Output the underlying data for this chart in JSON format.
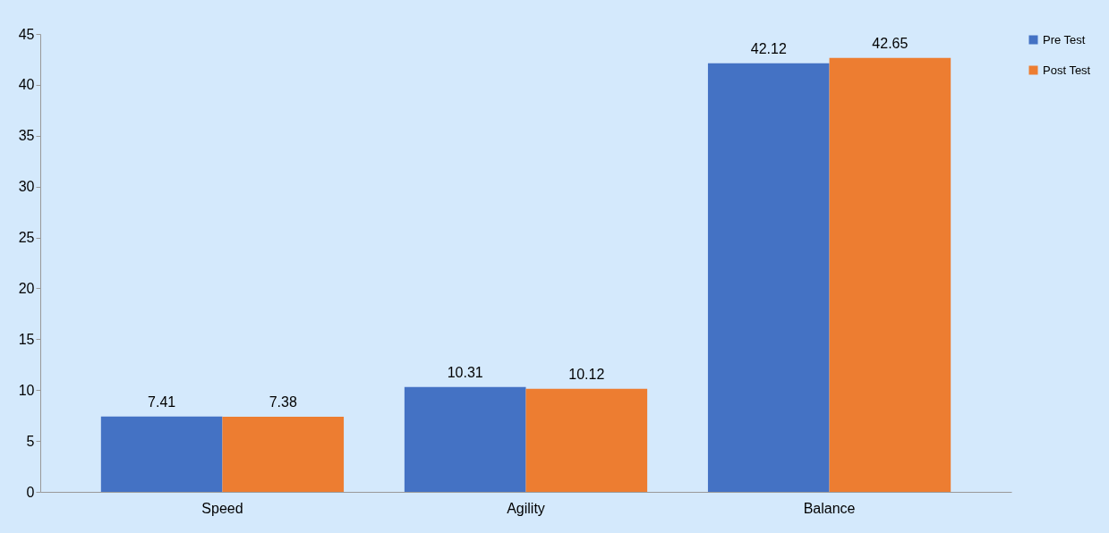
{
  "chart_data": {
    "type": "bar",
    "categories": [
      "Speed",
      "Agility",
      "Balance"
    ],
    "series": [
      {
        "name": "Pre Test",
        "color": "#4472c4",
        "values": [
          7.41,
          10.31,
          42.12
        ]
      },
      {
        "name": "Post Test",
        "color": "#ed7d31",
        "values": [
          7.38,
          10.12,
          42.65
        ]
      }
    ],
    "ylim": [
      0,
      45
    ],
    "yticks": [
      0,
      5,
      10,
      15,
      20,
      25,
      30,
      35,
      40,
      45
    ],
    "grid": false,
    "legend": "right",
    "data_labels": true
  }
}
